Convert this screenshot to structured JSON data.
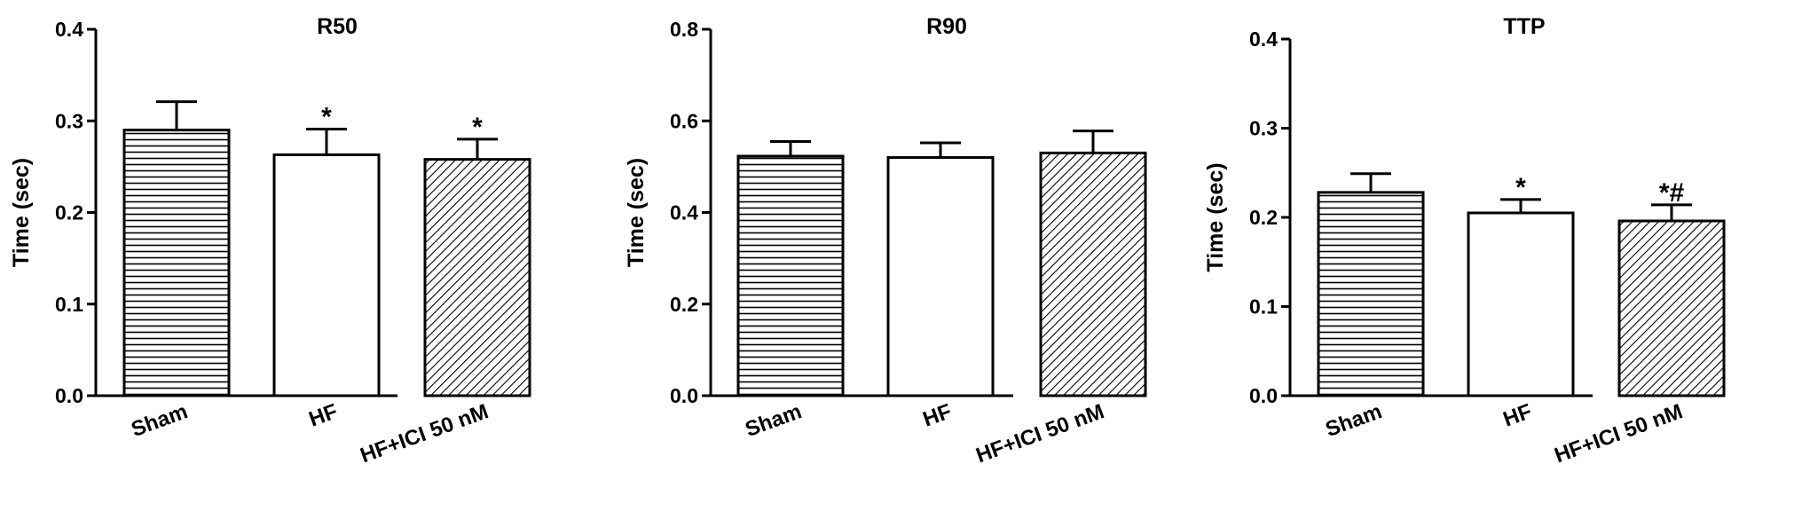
{
  "chart_data": [
    {
      "type": "bar",
      "title": "R50",
      "ylabel": "Time (sec)",
      "ylim": [
        0,
        0.4
      ],
      "yticks": [
        "0.0",
        "0.1",
        "0.2",
        "0.3",
        "0.4"
      ],
      "categories": [
        "Sham",
        "HF",
        "HF+ICI 50 nM"
      ],
      "values": [
        0.29,
        0.263,
        0.258
      ],
      "errors": [
        0.031,
        0.028,
        0.022
      ],
      "annotations": [
        "",
        "*",
        "*"
      ],
      "patterns": [
        "horizontal",
        "none",
        "diagonal"
      ]
    },
    {
      "type": "bar",
      "title": "R90",
      "ylabel": "Time (sec)",
      "ylim": [
        0,
        0.8
      ],
      "yticks": [
        "0.0",
        "0.2",
        "0.4",
        "0.6",
        "0.8"
      ],
      "categories": [
        "Sham",
        "HF",
        "HF+ICI 50 nM"
      ],
      "values": [
        0.523,
        0.52,
        0.53
      ],
      "errors": [
        0.032,
        0.032,
        0.048
      ],
      "annotations": [
        "",
        "",
        ""
      ],
      "patterns": [
        "horizontal",
        "none",
        "diagonal"
      ]
    },
    {
      "type": "bar",
      "title": "TTP",
      "ylabel": "Time (sec)",
      "ylim": [
        0,
        0.4
      ],
      "yticks": [
        "0.0",
        "0.1",
        "0.2",
        "0.3",
        "0.4"
      ],
      "categories": [
        "Sham",
        "HF",
        "HF+ICI 50 nM"
      ],
      "values": [
        0.228,
        0.205,
        0.196
      ],
      "errors": [
        0.021,
        0.015,
        0.018
      ],
      "annotations": [
        "",
        "*",
        "*#"
      ],
      "patterns": [
        "horizontal",
        "none",
        "diagonal"
      ]
    }
  ]
}
